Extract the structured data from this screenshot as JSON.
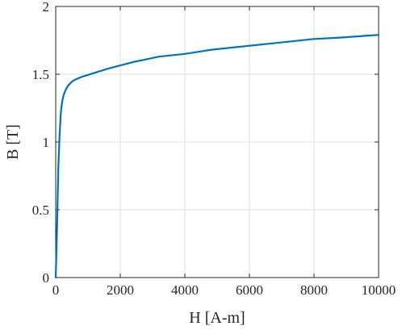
{
  "chart_data": {
    "type": "line",
    "title": "",
    "xlabel": "H [A-m]",
    "ylabel": "B [T]",
    "xlim": [
      0,
      10000
    ],
    "ylim": [
      0,
      2
    ],
    "xticks": [
      0,
      2000,
      4000,
      6000,
      8000,
      10000
    ],
    "xtick_labels": [
      "0",
      "2000",
      "4000",
      "6000",
      "8000",
      "10000"
    ],
    "yticks": [
      0,
      0.5,
      1,
      1.5,
      2
    ],
    "ytick_labels": [
      "0",
      "0.5",
      "1",
      "1.5",
      "2"
    ],
    "grid": true,
    "legend": "none",
    "series_color": "#0072BD",
    "series": [
      {
        "x": [
          0,
          40,
          80,
          120,
          160,
          200,
          250,
          320,
          400,
          500,
          600,
          700,
          800,
          1000,
          1200,
          1600,
          2000,
          2400,
          2800,
          3200,
          4000,
          4800,
          5600,
          6400,
          7200,
          8000,
          8800,
          10000
        ],
        "y": [
          0,
          0.35,
          0.8,
          1.05,
          1.22,
          1.3,
          1.35,
          1.39,
          1.42,
          1.445,
          1.46,
          1.47,
          1.48,
          1.495,
          1.51,
          1.54,
          1.565,
          1.59,
          1.61,
          1.63,
          1.65,
          1.68,
          1.7,
          1.72,
          1.74,
          1.76,
          1.77,
          1.79
        ]
      }
    ]
  }
}
